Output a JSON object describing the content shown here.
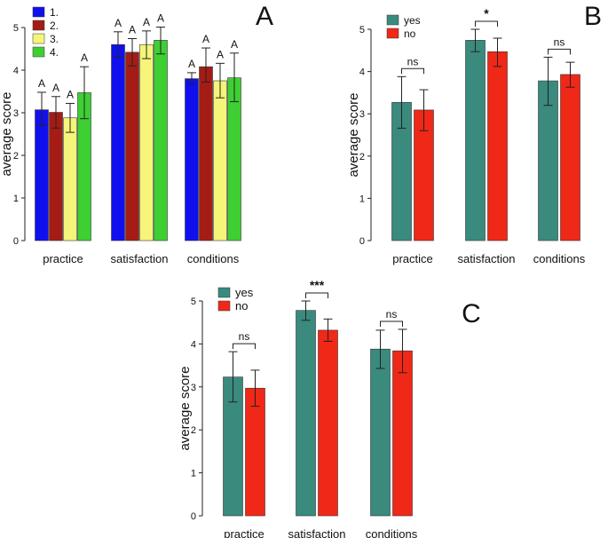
{
  "chart_data": [
    {
      "type": "bar",
      "panel_label": "A",
      "ylabel": "average score",
      "ylim": [
        0,
        5
      ],
      "yticks": [
        "0",
        "1",
        "2",
        "3",
        "4",
        "5"
      ],
      "categories": [
        "practice",
        "satisfaction",
        "conditions"
      ],
      "legend_position": "top-left",
      "series": [
        {
          "name": "1.",
          "color": "#1010ee",
          "values": [
            3.07,
            4.6,
            3.8
          ],
          "err_low": [
            2.7,
            4.3,
            3.68
          ],
          "err_high": [
            3.48,
            4.9,
            3.94
          ],
          "labels": [
            "A",
            "A",
            "A"
          ]
        },
        {
          "name": "2.",
          "color": "#a51c17",
          "values": [
            3.01,
            4.42,
            4.08
          ],
          "err_low": [
            2.64,
            4.1,
            3.72
          ],
          "err_high": [
            3.38,
            4.74,
            4.52
          ],
          "labels": [
            "A",
            "A",
            "A"
          ]
        },
        {
          "name": "3.",
          "color": "#f5f57a",
          "values": [
            2.88,
            4.6,
            3.75
          ],
          "err_low": [
            2.54,
            4.27,
            3.35
          ],
          "err_high": [
            3.22,
            4.92,
            4.16
          ],
          "labels": [
            "A",
            "A",
            "A"
          ]
        },
        {
          "name": "4.",
          "color": "#3ecf33",
          "values": [
            3.47,
            4.7,
            3.82
          ],
          "err_low": [
            2.86,
            4.38,
            3.26
          ],
          "err_high": [
            4.08,
            5.01,
            4.4
          ],
          "labels": [
            "A",
            "A",
            "A"
          ]
        }
      ]
    },
    {
      "type": "bar",
      "panel_label": "B",
      "ylabel": "average score",
      "ylim": [
        0,
        5
      ],
      "yticks": [
        "0",
        "1",
        "2",
        "3",
        "4",
        "5"
      ],
      "categories": [
        "practice",
        "satisfaction",
        "conditions"
      ],
      "legend_position": "top-left",
      "series": [
        {
          "name": "yes",
          "color": "#3a8a7e",
          "values": [
            3.27,
            4.74,
            3.78
          ],
          "err_low": [
            2.66,
            4.47,
            3.2
          ],
          "err_high": [
            3.88,
            5.0,
            4.34
          ]
        },
        {
          "name": "no",
          "color": "#f02818",
          "values": [
            3.09,
            4.47,
            3.93
          ],
          "err_low": [
            2.6,
            4.12,
            3.63
          ],
          "err_high": [
            3.57,
            4.79,
            4.22
          ]
        }
      ],
      "significance": [
        "ns",
        "*",
        "ns"
      ]
    },
    {
      "type": "bar",
      "panel_label": "C",
      "ylabel": "average score",
      "ylim": [
        0,
        5
      ],
      "yticks": [
        "0",
        "1",
        "2",
        "3",
        "4",
        "5"
      ],
      "categories": [
        "practice",
        "satisfaction",
        "conditions"
      ],
      "legend_position": "top-left",
      "series": [
        {
          "name": "yes",
          "color": "#3a8a7e",
          "values": [
            3.23,
            4.78,
            3.88
          ],
          "err_low": [
            2.65,
            4.55,
            3.43
          ],
          "err_high": [
            3.82,
            5.0,
            4.32
          ]
        },
        {
          "name": "no",
          "color": "#f02818",
          "values": [
            2.97,
            4.32,
            3.84
          ],
          "err_low": [
            2.55,
            4.06,
            3.33
          ],
          "err_high": [
            3.39,
            4.58,
            4.34
          ]
        }
      ],
      "significance": [
        "ns",
        "***",
        "ns"
      ]
    }
  ]
}
